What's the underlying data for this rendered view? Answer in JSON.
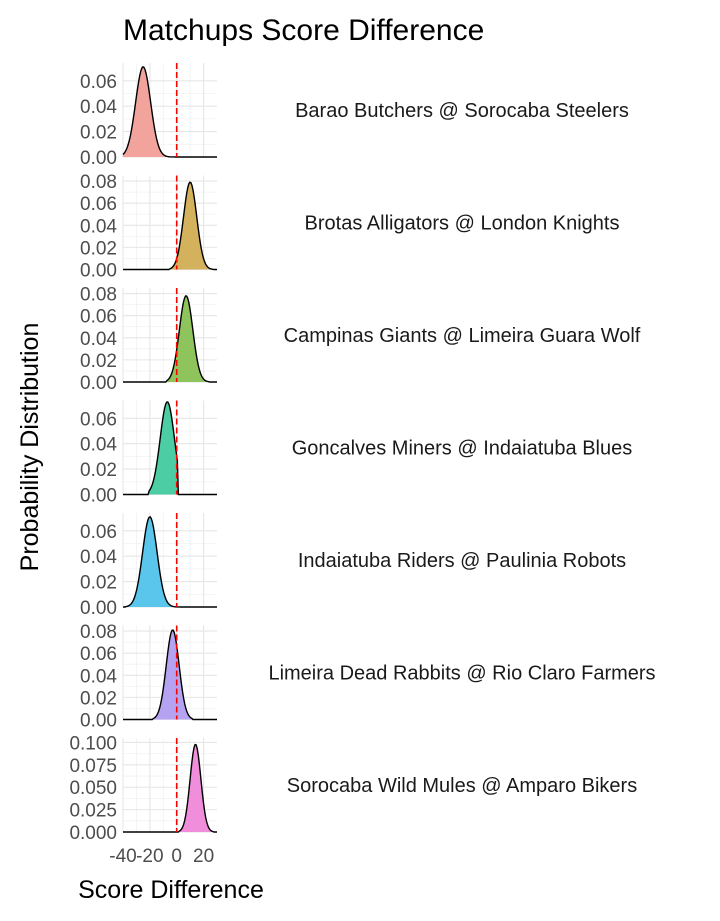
{
  "chart_data": {
    "type": "area",
    "title": "Matchups Score Difference",
    "xlabel": "Score Difference",
    "ylabel": "Probability Distribution",
    "xlim": [
      -40,
      30
    ],
    "x_ticks": [
      -40,
      -20,
      0,
      20
    ],
    "x_tick_labels": [
      "-40",
      "-20",
      "0",
      "20"
    ],
    "reference_line": {
      "x": 0,
      "color": "#ff0000",
      "style": "dashed"
    },
    "grid": true,
    "facets": [
      {
        "label": "Barao Butchers @ Sorocaba Steelers",
        "color": "#F2A39C",
        "ylim": [
          0,
          0.074
        ],
        "y_ticks": [
          0,
          0.02,
          0.04,
          0.06
        ],
        "y_tick_labels": [
          "0.00",
          "0.02",
          "0.04",
          "0.06"
        ],
        "peak_x": -25,
        "peak_y": 0.071,
        "sd": 5.6,
        "x_range": [
          -40,
          2
        ]
      },
      {
        "label": "Brotas Alligators @ London Knights",
        "color": "#D4B15C",
        "ylim": [
          0,
          0.085
        ],
        "y_ticks": [
          0,
          0.02,
          0.04,
          0.06,
          0.08
        ],
        "y_tick_labels": [
          "0.00",
          "0.02",
          "0.04",
          "0.06",
          "0.08"
        ],
        "peak_x": 10,
        "peak_y": 0.079,
        "sd": 4.9,
        "x_range": [
          -5,
          27
        ]
      },
      {
        "label": "Campinas Giants @ Limeira Guara Wolf",
        "color": "#8FC45D",
        "ylim": [
          0,
          0.085
        ],
        "y_ticks": [
          0,
          0.02,
          0.04,
          0.06,
          0.08
        ],
        "y_tick_labels": [
          "0.00",
          "0.02",
          "0.04",
          "0.06",
          "0.08"
        ],
        "peak_x": 7,
        "peak_y": 0.078,
        "sd": 5.0,
        "x_range": [
          -8,
          24
        ]
      },
      {
        "label": "Goncalves Miners @ Indaiatuba Blues",
        "color": "#4DCDA4",
        "ylim": [
          0,
          0.074
        ],
        "y_ticks": [
          0,
          0.02,
          0.04,
          0.06
        ],
        "y_tick_labels": [
          "0.00",
          "0.02",
          "0.04",
          "0.06"
        ],
        "peak_x": -7,
        "peak_y": 0.073,
        "sd": 5.3,
        "x_range": [
          -21,
          1
        ]
      },
      {
        "label": "Indaiatuba Riders @ Paulinia Robots",
        "color": "#5BC6EB",
        "ylim": [
          0,
          0.074
        ],
        "y_ticks": [
          0,
          0.02,
          0.04,
          0.06
        ],
        "y_tick_labels": [
          "0.00",
          "0.02",
          "0.04",
          "0.06"
        ],
        "peak_x": -20,
        "peak_y": 0.071,
        "sd": 5.4,
        "x_range": [
          -38,
          3
        ]
      },
      {
        "label": "Limeira Dead Rabbits @ Rio Claro Farmers",
        "color": "#B5A3F2",
        "ylim": [
          0,
          0.085
        ],
        "y_ticks": [
          0,
          0.02,
          0.04,
          0.06,
          0.08
        ],
        "y_tick_labels": [
          "0.00",
          "0.02",
          "0.04",
          "0.06",
          "0.08"
        ],
        "peak_x": -3,
        "peak_y": 0.081,
        "sd": 4.8,
        "x_range": [
          -18,
          12
        ]
      },
      {
        "label": "Sorocaba Wild Mules @ Amparo Bikers",
        "color": "#F08EDC",
        "ylim": [
          0,
          0.105
        ],
        "y_ticks": [
          0,
          0.025,
          0.05,
          0.075,
          0.1
        ],
        "y_tick_labels": [
          "0.000",
          "0.025",
          "0.050",
          "0.075",
          "0.100"
        ],
        "peak_x": 14,
        "peak_y": 0.098,
        "sd": 4.0,
        "x_range": [
          2,
          27
        ]
      }
    ]
  }
}
